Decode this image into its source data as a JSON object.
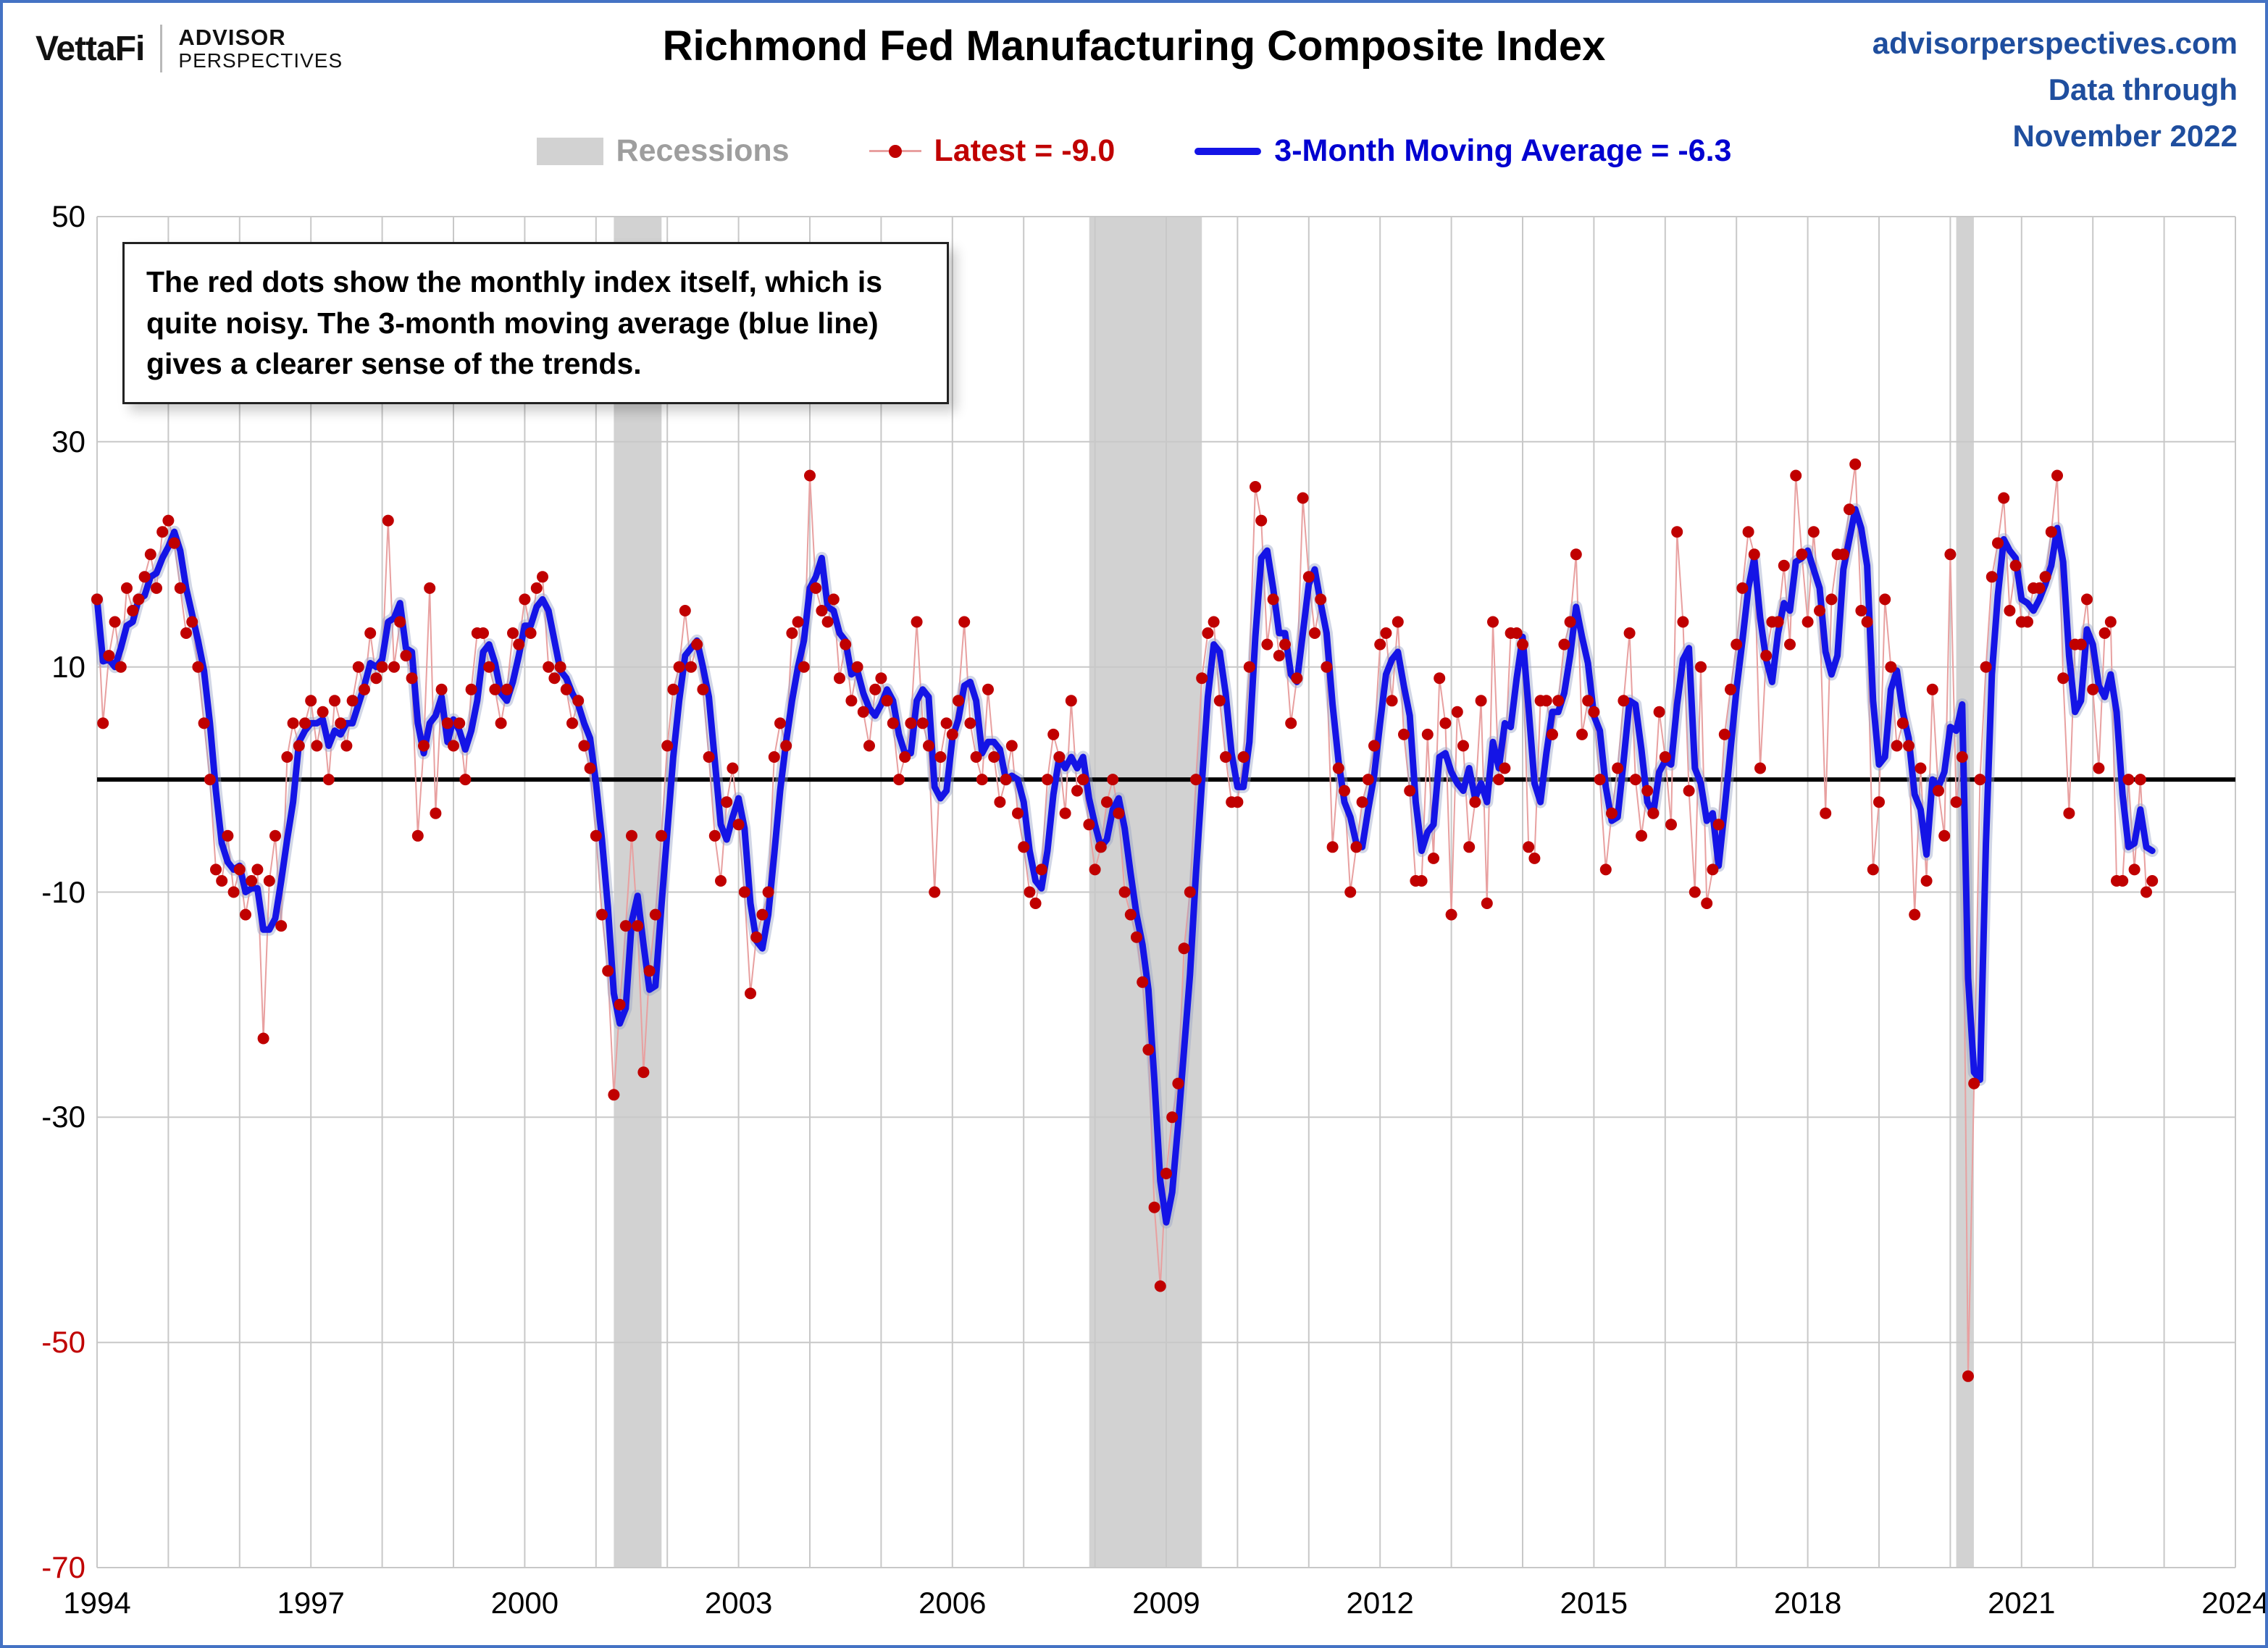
{
  "header": {
    "logo_primary": "VettaFi",
    "logo_secondary_line1": "ADVISOR",
    "logo_secondary_line2": "PERSPECTIVES",
    "title": "Richmond Fed Manufacturing Composite Index",
    "source_site": "advisorperspectives.com",
    "source_line2": "Data through",
    "source_line3": "November 2022"
  },
  "legend": {
    "recessions_label": "Recessions",
    "latest_label": "Latest = -9.0",
    "ma_label": "3-Month Moving Average = -6.3"
  },
  "annotation": {
    "text": "The red dots show the monthly  index itself, which is quite noisy. The 3-month moving average (blue line) gives a clearer sense of the trends."
  },
  "colors": {
    "dot_red": "#C00000",
    "thin_red": "#E8A0A0",
    "ma_blue": "#1414E6",
    "ma_halo": "#9AA4C8",
    "recession_gray": "#D2D2D2",
    "grid_gray": "#C8C8C8",
    "zero_line": "#000000",
    "header_blue": "#1F4E9E",
    "legend_gray": "#9E9E9E",
    "border_blue": "#4472C4"
  },
  "chart_data": {
    "type": "line",
    "title": "Richmond Fed Manufacturing Composite Index",
    "frequency": "monthly",
    "start": "1994-01",
    "end": "2022-11",
    "x_range": [
      1994,
      2024
    ],
    "x_axis_years": [
      1994,
      1997,
      2000,
      2003,
      2006,
      2009,
      2012,
      2015,
      2018,
      2021,
      2024
    ],
    "y_ticks": [
      50,
      30,
      10,
      -10,
      -30,
      -50,
      -70
    ],
    "y_tick_colors": [
      "#000000",
      "#000000",
      "#000000",
      "#000000",
      "#000000",
      "#C00000",
      "#C00000"
    ],
    "ylim": [
      -70,
      50
    ],
    "zero_line": 0,
    "grid": true,
    "legend_position": "top",
    "recessions": [
      [
        2001.25,
        2001.92
      ],
      [
        2007.92,
        2009.5
      ],
      [
        2020.083,
        2020.33
      ]
    ],
    "series": [
      {
        "name": "Latest = -9.0",
        "style": "dots-with-thin-line",
        "color": "#C00000"
      },
      {
        "name": "3-Month Moving Average = -6.3",
        "style": "thick-line",
        "color": "#1414E6",
        "derived": "trailing-3-month-average"
      }
    ],
    "latest_value": -9.0,
    "ma_latest": -6.3,
    "monthly_values": [
      16,
      5,
      11,
      14,
      10,
      17,
      15,
      16,
      18,
      20,
      17,
      22,
      23,
      21,
      17,
      13,
      14,
      10,
      5,
      0,
      -8,
      -9,
      -5,
      -10,
      -8,
      -12,
      -9,
      -8,
      -23,
      -9,
      -5,
      -13,
      2,
      5,
      3,
      5,
      7,
      3,
      6,
      0,
      7,
      5,
      3,
      7,
      10,
      8,
      13,
      9,
      10,
      23,
      10,
      14,
      11,
      9,
      -5,
      3,
      17,
      -3,
      8,
      5,
      3,
      5,
      0,
      8,
      13,
      13,
      10,
      8,
      5,
      8,
      13,
      12,
      16,
      13,
      17,
      18,
      10,
      9,
      10,
      8,
      5,
      7,
      3,
      1,
      -5,
      -12,
      -17,
      -28,
      -20,
      -13,
      -5,
      -13,
      -26,
      -17,
      -12,
      -5,
      3,
      8,
      10,
      15,
      10,
      12,
      8,
      2,
      -5,
      -9,
      -2,
      1,
      -4,
      -10,
      -19,
      -14,
      -12,
      -10,
      2,
      5,
      3,
      13,
      14,
      10,
      27,
      17,
      15,
      14,
      16,
      9,
      12,
      7,
      10,
      6,
      3,
      8,
      9,
      7,
      5,
      0,
      2,
      5,
      14,
      5,
      3,
      -10,
      2,
      5,
      4,
      7,
      14,
      5,
      2,
      0,
      8,
      2,
      -2,
      0,
      3,
      -3,
      -6,
      -10,
      -11,
      -8,
      0,
      4,
      2,
      -3,
      7,
      -1,
      0,
      -4,
      -8,
      -6,
      -2,
      0,
      -3,
      -10,
      -12,
      -14,
      -18,
      -24,
      -38,
      -45,
      -35,
      -30,
      -27,
      -15,
      -10,
      0,
      9,
      13,
      14,
      7,
      2,
      -2,
      -2,
      2,
      10,
      26,
      23,
      12,
      16,
      11,
      12,
      5,
      9,
      25,
      18,
      13,
      16,
      10,
      -6,
      1,
      -1,
      -10,
      -6,
      -2,
      0,
      3,
      12,
      13,
      7,
      14,
      4,
      -1,
      -9,
      -9,
      4,
      -7,
      9,
      5,
      -12,
      6,
      3,
      -6,
      -2,
      7,
      -11,
      14,
      0,
      1,
      13,
      13,
      12,
      -6,
      -7,
      7,
      7,
      4,
      7,
      12,
      14,
      20,
      4,
      7,
      6,
      0,
      -8,
      -3,
      1,
      7,
      13,
      0,
      -5,
      -1,
      -3,
      6,
      2,
      -4,
      22,
      14,
      -1,
      -10,
      10,
      -11,
      -8,
      -4,
      4,
      8,
      12,
      17,
      22,
      20,
      1,
      11,
      14,
      14,
      19,
      12,
      27,
      20,
      14,
      22,
      15,
      -3,
      16,
      20,
      20,
      24,
      28,
      15,
      14,
      -8,
      -2,
      16,
      10,
      3,
      5,
      3,
      -12,
      1,
      -9,
      8,
      -1,
      -5,
      20,
      -2,
      2,
      -53,
      -27,
      0,
      10,
      18,
      21,
      25,
      15,
      19,
      14,
      14,
      17,
      17,
      18,
      22,
      27,
      9,
      -3,
      12,
      12,
      16,
      8,
      1,
      13,
      14,
      -9,
      -9,
      0,
      -8,
      0,
      -10,
      -9
    ]
  }
}
